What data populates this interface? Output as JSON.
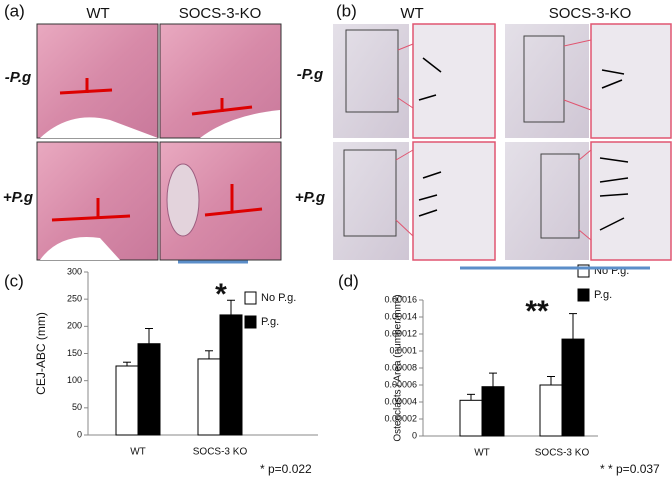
{
  "figure": {
    "a": {
      "label": "(a)",
      "columns": [
        "WT",
        "SOCS-3-KO"
      ],
      "rows": [
        "-P.g",
        "+P.g"
      ]
    },
    "b": {
      "label": "(b)",
      "columns": [
        "WT",
        "SOCS-3-KO"
      ],
      "rows": [
        "-P.g",
        "+P.g"
      ]
    },
    "c": {
      "label": "(c)"
    },
    "d": {
      "label": "(d)"
    }
  },
  "chart_data": [
    {
      "type": "bar",
      "y_label": "CEJ-ABC (mm)",
      "categories": [
        "WT",
        "SOCS-3 KO"
      ],
      "series": [
        {
          "name": "No P.g.",
          "color": "#ffffff",
          "values": [
            127,
            140
          ],
          "errors": [
            7,
            15
          ]
        },
        {
          "name": "P.g.",
          "color": "#000000",
          "values": [
            168,
            221
          ],
          "errors": [
            28,
            27
          ]
        }
      ],
      "ylim": [
        0,
        300
      ],
      "yticks": [
        0,
        50,
        100,
        150,
        200,
        250,
        300
      ],
      "annotation": "*",
      "significance_color": "#5b8ec9",
      "footnote": "* p=0.022"
    },
    {
      "type": "bar",
      "y_label": "Osteoclasts / Area (number/mm²)",
      "categories": [
        "WT",
        "SOCS-3 KO"
      ],
      "series": [
        {
          "name": "No P.g.",
          "color": "#ffffff",
          "values": [
            4.2e-05,
            6e-05
          ],
          "errors": [
            7e-06,
            1e-05
          ]
        },
        {
          "name": "P.g.",
          "color": "#000000",
          "values": [
            5.8e-05,
            0.000114
          ],
          "errors": [
            1.6e-05,
            3e-05
          ]
        }
      ],
      "ylim": [
        0,
        0.00016
      ],
      "yticks": [
        0,
        2e-05,
        4e-05,
        6e-05,
        8e-05,
        0.0001,
        0.00012,
        0.00014,
        0.00016
      ],
      "annotation": "**",
      "significance_color": "#5b8ec9",
      "footnote": "* * p=0.037"
    }
  ]
}
